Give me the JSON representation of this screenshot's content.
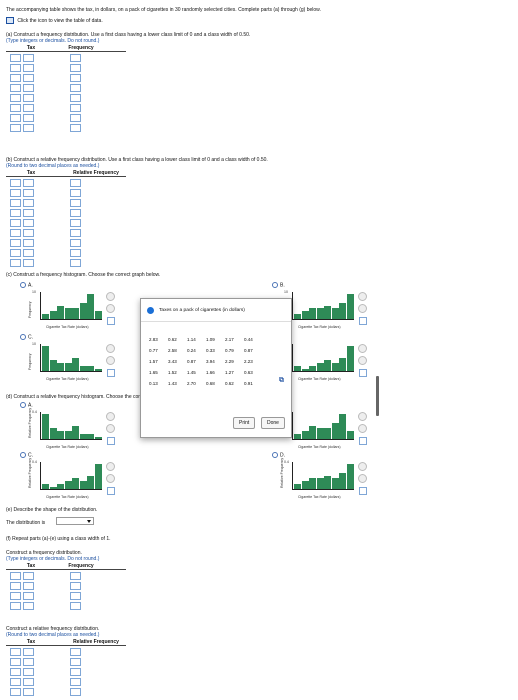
{
  "intro": "The accompanying table shows the tax, in dollars, on a pack of cigarettes in 30 randomly selected cities. Complete parts (a) through (g) below.",
  "data_link": "Click the icon to view the table of data.",
  "a": {
    "prompt": "(a) Construct a frequency distribution. Use a first class having a lower class limit of 0 and a class width of 0.50.",
    "hint": "(Type integers or decimals. Do not round.)",
    "col1": "Tax",
    "col2": "Frequency"
  },
  "b": {
    "prompt": "(b) Construct a relative frequency distribution. Use a first class having a lower class limit of 0 and a class width of 0.50.",
    "hint": "(Round to two decimal places as needed.)",
    "col1": "Tax",
    "col2": "Relative Frequency"
  },
  "c": {
    "prompt": "(c) Construct a frequency histogram. Choose the correct graph below.",
    "options": [
      "A.",
      "B.",
      "C.",
      "D."
    ],
    "xlabel": "Cigarette Tax Rate (dollars)",
    "ylabel": "Frequency",
    "ytop": "10"
  },
  "d": {
    "prompt": "(d) Construct a relative frequency histogram. Choose the correct graph below.",
    "options": [
      "A.",
      "B.",
      "C.",
      "D."
    ],
    "xlabel": "Cigarette Tax Rate (dollars)",
    "ylabel": "Relative Frequency",
    "ytop": "0.4"
  },
  "e": {
    "prompt": "(e) Describe the shape of the distribution.",
    "label": "The distribution is",
    "select_value": ""
  },
  "f": {
    "prompt": "(f) Repeat parts (a)-(e) using a class width of 1.",
    "freq_prompt": "Construct a frequency distribution.",
    "freq_hint": "(Type integers or decimals. Do not round.)",
    "rel_prompt": "Construct a relative frequency distribution.",
    "rel_hint": "(Round to two decimal places as needed.)",
    "col1": "Tax",
    "col2": "Frequency",
    "col2b": "Relative Frequency"
  },
  "popup": {
    "title": "Taxes on a pack of cigarettes (in dollars)",
    "rows": [
      [
        "2.83",
        "0.62",
        "1.14",
        "1.09",
        "2.17",
        "0.44"
      ],
      [
        "0.77",
        "2.58",
        "0.24",
        "0.33",
        "0.79",
        "0.87"
      ],
      [
        "1.57",
        "3.43",
        "0.87",
        "3.94",
        "2.29",
        "2.23"
      ],
      [
        "1.65",
        "1.52",
        "1.45",
        "1.66",
        "1.27",
        "0.63"
      ],
      [
        "0.13",
        "1.43",
        "2.70",
        "0.68",
        "0.62",
        "0.91"
      ]
    ],
    "print": "Print",
    "done": "Done"
  },
  "colors": {
    "bars": "#2e8b57",
    "link": "#1b4fa0",
    "cell_border": "#7fa6d6"
  }
}
